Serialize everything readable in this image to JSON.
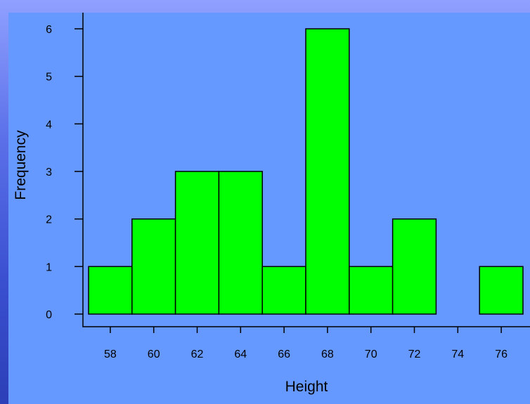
{
  "chart_data": {
    "type": "bar",
    "title": "",
    "xlabel": "Height",
    "ylabel": "Frequency",
    "bin_edges": [
      57,
      59,
      61,
      63,
      65,
      67,
      69,
      71,
      73,
      75,
      77
    ],
    "values": [
      1,
      2,
      3,
      3,
      1,
      6,
      1,
      2,
      0,
      1
    ],
    "xlim": [
      57,
      77
    ],
    "ylim": [
      0,
      6.2
    ],
    "x_ticks": [
      "58",
      "60",
      "62",
      "64",
      "66",
      "68",
      "70",
      "72",
      "74",
      "76"
    ],
    "y_ticks": [
      "0",
      "1",
      "2",
      "3",
      "4",
      "5",
      "6"
    ],
    "grid": false,
    "colors": {
      "bar_fill": "#00ff00",
      "bar_stroke": "#000000",
      "plot_background": "#6699ff"
    }
  }
}
